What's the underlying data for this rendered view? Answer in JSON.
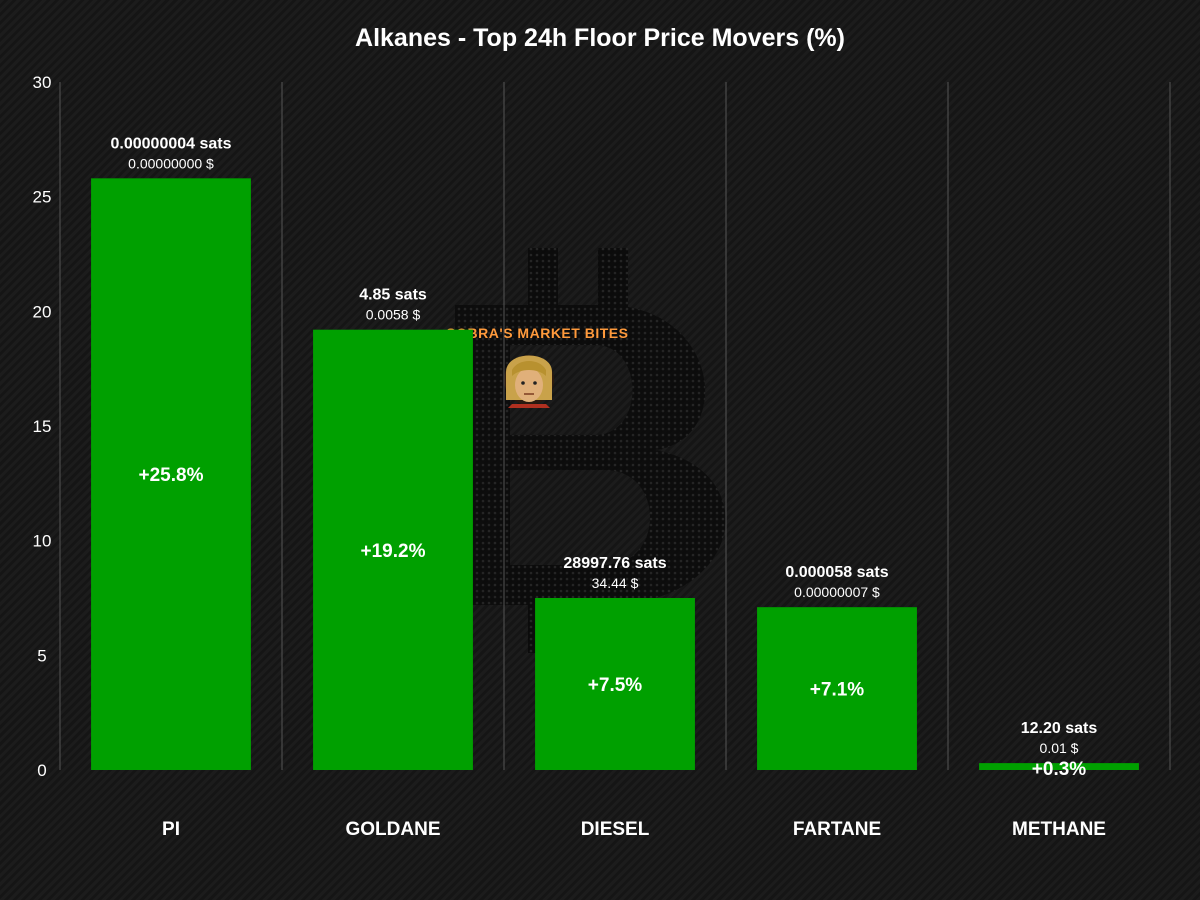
{
  "chart_data": {
    "type": "bar",
    "title": "Alkanes - Top 24h Floor Price Movers (%)",
    "xlabel": "",
    "ylabel": "",
    "ylim": [
      0,
      30
    ],
    "yticks": [
      0,
      5,
      10,
      15,
      20,
      25,
      30
    ],
    "grid": "vertical",
    "legend": "none",
    "bar_color": "#00a000",
    "categories": [
      "PI",
      "GOLDANE",
      "DIESEL",
      "FARTANE",
      "METHANE"
    ],
    "values": [
      25.8,
      19.2,
      7.5,
      7.1,
      0.3
    ],
    "value_labels": [
      "+25.8%",
      "+19.2%",
      "+7.5%",
      "+7.1%",
      "+0.3%"
    ],
    "sats_labels": [
      "0.00000004 sats",
      "4.85 sats",
      "28997.76 sats",
      "0.000058 sats",
      "12.20 sats"
    ],
    "usd_labels": [
      "0.00000000 $",
      "0.0058 $",
      "34.44 $",
      "0.00000007 $",
      "0.01 $"
    ]
  },
  "watermark": {
    "text": "COBRA'S MARKET BITES",
    "icon": "bitcoin-logo-icon",
    "avatar": "cartoon-avatar-icon",
    "text_color": "#ff9a3c"
  }
}
